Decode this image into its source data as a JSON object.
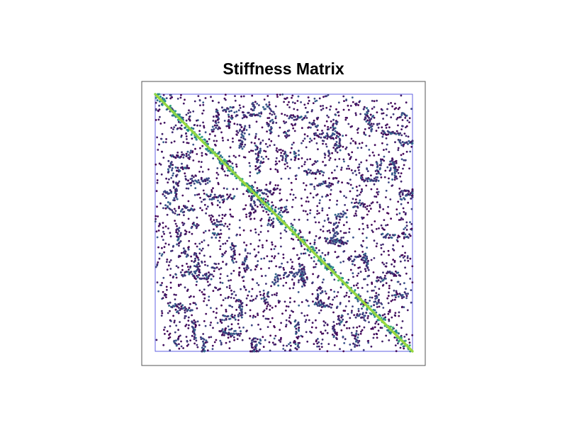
{
  "chart_data": {
    "type": "scatter",
    "title": "Stiffness Matrix",
    "xlabel": "",
    "ylabel": "",
    "grid": false,
    "legend": "none",
    "xlim": [
      0,
      1
    ],
    "ylim": [
      0,
      1
    ],
    "colors": {
      "frame": "#555555",
      "inner_border": "#3b3bdc",
      "colormap": [
        "#440154",
        "#3b528b",
        "#21918c",
        "#5ec962",
        "#aadc32"
      ]
    },
    "pattern": "sparse-symmetric",
    "diagonal_value": 1.0,
    "offdiag_value_range": [
      0.0,
      0.35
    ],
    "clusters": [
      [
        0.26,
        0.06
      ],
      [
        0.29,
        0.08
      ],
      [
        0.22,
        0.13
      ],
      [
        0.34,
        0.12
      ],
      [
        0.45,
        0.1
      ],
      [
        0.52,
        0.09
      ],
      [
        0.62,
        0.16
      ],
      [
        0.67,
        0.22
      ],
      [
        0.71,
        0.15
      ],
      [
        0.84,
        0.08
      ],
      [
        0.95,
        0.19
      ],
      [
        0.87,
        0.26
      ],
      [
        0.77,
        0.43
      ],
      [
        0.95,
        0.38
      ],
      [
        0.93,
        0.26
      ],
      [
        0.42,
        0.05
      ],
      [
        0.4,
        0.2
      ],
      [
        0.06,
        0.24
      ],
      [
        0.08,
        0.34
      ],
      [
        0.03,
        0.38
      ],
      [
        0.15,
        0.5
      ],
      [
        0.22,
        0.55
      ],
      [
        0.35,
        0.63
      ],
      [
        0.12,
        0.6
      ],
      [
        0.1,
        0.7
      ],
      [
        0.05,
        0.82
      ],
      [
        0.15,
        0.88
      ],
      [
        0.25,
        0.92
      ],
      [
        0.33,
        0.8
      ],
      [
        0.4,
        0.95
      ],
      [
        0.2,
        0.7
      ],
      [
        0.08,
        0.95
      ],
      [
        0.28,
        0.4
      ],
      [
        0.58,
        0.3
      ],
      [
        0.48,
        0.45
      ],
      [
        0.4,
        0.38
      ],
      [
        0.66,
        0.57
      ],
      [
        0.58,
        0.68
      ],
      [
        0.72,
        0.86
      ],
      [
        0.64,
        0.75
      ],
      [
        0.82,
        0.62
      ],
      [
        0.86,
        0.78
      ],
      [
        0.78,
        0.93
      ],
      [
        0.9,
        0.7
      ],
      [
        0.55,
        0.88
      ],
      [
        0.47,
        0.7
      ],
      [
        0.96,
        0.55
      ],
      [
        0.7,
        0.5
      ],
      [
        0.18,
        0.33
      ],
      [
        0.5,
        0.22
      ]
    ]
  }
}
